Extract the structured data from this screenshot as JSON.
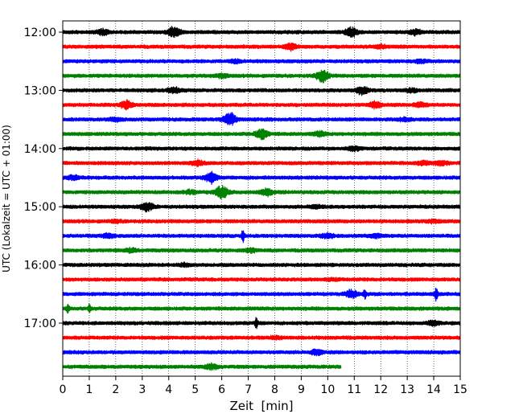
{
  "chart_data": {
    "type": "line",
    "title": "",
    "xlabel": "Zeit  [min]",
    "ylabel": "UTC (Lokalzeit = UTC + 01:00)",
    "xlim": [
      0,
      15
    ],
    "x_ticks": [
      "0",
      "1",
      "2",
      "3",
      "4",
      "5",
      "6",
      "7",
      "8",
      "9",
      "10",
      "11",
      "12",
      "13",
      "14",
      "15"
    ],
    "y_ticks": [
      "12:00",
      "13:00",
      "14:00",
      "15:00",
      "16:00",
      "17:00"
    ],
    "grid": "vertical-dotted",
    "row_minutes": 15,
    "start_time": "12:00",
    "colors": [
      "#000000",
      "#ff0000",
      "#0000ff",
      "#008000"
    ],
    "rows": [
      {
        "start": "12:00",
        "color": "#000000",
        "end_min": 15,
        "events": [
          {
            "t": 1.5,
            "amp": 0.5
          },
          {
            "t": 4.2,
            "amp": 1.0
          },
          {
            "t": 10.9,
            "amp": 0.9
          },
          {
            "t": 13.3,
            "amp": 0.5
          }
        ]
      },
      {
        "start": "12:15",
        "color": "#ff0000",
        "end_min": 15,
        "events": [
          {
            "t": 8.6,
            "amp": 0.6
          },
          {
            "t": 12.0,
            "amp": 0.3
          }
        ]
      },
      {
        "start": "12:30",
        "color": "#0000ff",
        "end_min": 15,
        "events": [
          {
            "t": 6.5,
            "amp": 0.3
          },
          {
            "t": 13.5,
            "amp": 0.3
          }
        ]
      },
      {
        "start": "12:45",
        "color": "#008000",
        "end_min": 15,
        "events": [
          {
            "t": 9.8,
            "amp": 1.2
          },
          {
            "t": 6.0,
            "amp": 0.3
          }
        ]
      },
      {
        "start": "13:00",
        "color": "#000000",
        "end_min": 15,
        "events": [
          {
            "t": 4.2,
            "amp": 0.5
          },
          {
            "t": 11.3,
            "amp": 0.7
          },
          {
            "t": 13.2,
            "amp": 0.3
          }
        ]
      },
      {
        "start": "13:15",
        "color": "#ff0000",
        "end_min": 15,
        "events": [
          {
            "t": 2.4,
            "amp": 0.8
          },
          {
            "t": 11.8,
            "amp": 0.6
          },
          {
            "t": 13.5,
            "amp": 0.4
          }
        ]
      },
      {
        "start": "13:30",
        "color": "#0000ff",
        "end_min": 15,
        "events": [
          {
            "t": 6.3,
            "amp": 1.2
          },
          {
            "t": 2.0,
            "amp": 0.3
          },
          {
            "t": 12.9,
            "amp": 0.3
          }
        ]
      },
      {
        "start": "13:45",
        "color": "#008000",
        "end_min": 15,
        "events": [
          {
            "t": 7.5,
            "amp": 1.0
          },
          {
            "t": 9.7,
            "amp": 0.4
          }
        ]
      },
      {
        "start": "14:00",
        "color": "#000000",
        "end_min": 15,
        "events": [
          {
            "t": 11.0,
            "amp": 0.4
          }
        ]
      },
      {
        "start": "14:15",
        "color": "#ff0000",
        "end_min": 15,
        "events": [
          {
            "t": 5.1,
            "amp": 0.5
          },
          {
            "t": 13.6,
            "amp": 0.4
          },
          {
            "t": 14.3,
            "amp": 0.4
          }
        ]
      },
      {
        "start": "14:30",
        "color": "#0000ff",
        "end_min": 15,
        "events": [
          {
            "t": 5.6,
            "amp": 1.0
          },
          {
            "t": 0.4,
            "amp": 0.4
          }
        ]
      },
      {
        "start": "14:45",
        "color": "#008000",
        "end_min": 15,
        "events": [
          {
            "t": 6.0,
            "amp": 1.2
          },
          {
            "t": 7.7,
            "amp": 0.6
          },
          {
            "t": 4.8,
            "amp": 0.3
          }
        ]
      },
      {
        "start": "15:00",
        "color": "#000000",
        "end_min": 15,
        "events": [
          {
            "t": 3.2,
            "amp": 0.8
          },
          {
            "t": 9.6,
            "amp": 0.3
          }
        ]
      },
      {
        "start": "15:15",
        "color": "#ff0000",
        "end_min": 15,
        "events": [
          {
            "t": 14.0,
            "amp": 0.3
          },
          {
            "t": 2.0,
            "amp": 0.2
          }
        ]
      },
      {
        "start": "15:30",
        "color": "#0000ff",
        "end_min": 15,
        "events": [
          {
            "t": 6.8,
            "amp": 1.0,
            "spike": true
          },
          {
            "t": 1.7,
            "amp": 0.4
          },
          {
            "t": 10.0,
            "amp": 0.4
          },
          {
            "t": 11.8,
            "amp": 0.3
          }
        ]
      },
      {
        "start": "15:45",
        "color": "#008000",
        "end_min": 15,
        "events": [
          {
            "t": 2.6,
            "amp": 0.3
          },
          {
            "t": 7.1,
            "amp": 0.3
          }
        ]
      },
      {
        "start": "16:00",
        "color": "#000000",
        "end_min": 15,
        "events": [
          {
            "t": 4.6,
            "amp": 0.2
          }
        ]
      },
      {
        "start": "16:15",
        "color": "#ff0000",
        "end_min": 15,
        "events": [
          {
            "t": 10.2,
            "amp": 0.2
          }
        ]
      },
      {
        "start": "16:30",
        "color": "#0000ff",
        "end_min": 15,
        "events": [
          {
            "t": 10.9,
            "amp": 0.8
          },
          {
            "t": 11.4,
            "amp": 0.7,
            "spike": true
          },
          {
            "t": 14.1,
            "amp": 1.2,
            "spike": true
          }
        ]
      },
      {
        "start": "16:45",
        "color": "#008000",
        "end_min": 15,
        "events": [
          {
            "t": 0.2,
            "amp": 0.7,
            "spike": true
          },
          {
            "t": 1.0,
            "amp": 0.6,
            "spike": true
          }
        ]
      },
      {
        "start": "17:00",
        "color": "#000000",
        "end_min": 15,
        "events": [
          {
            "t": 7.3,
            "amp": 0.9,
            "spike": true
          },
          {
            "t": 14.0,
            "amp": 0.4
          }
        ]
      },
      {
        "start": "17:15",
        "color": "#ff0000",
        "end_min": 15,
        "events": [
          {
            "t": 8.0,
            "amp": 0.2
          }
        ]
      },
      {
        "start": "17:30",
        "color": "#0000ff",
        "end_min": 15,
        "events": [
          {
            "t": 9.6,
            "amp": 0.5
          }
        ]
      },
      {
        "start": "17:45",
        "color": "#008000",
        "end_min": 10.5,
        "events": [
          {
            "t": 5.6,
            "amp": 0.5
          }
        ]
      }
    ]
  }
}
